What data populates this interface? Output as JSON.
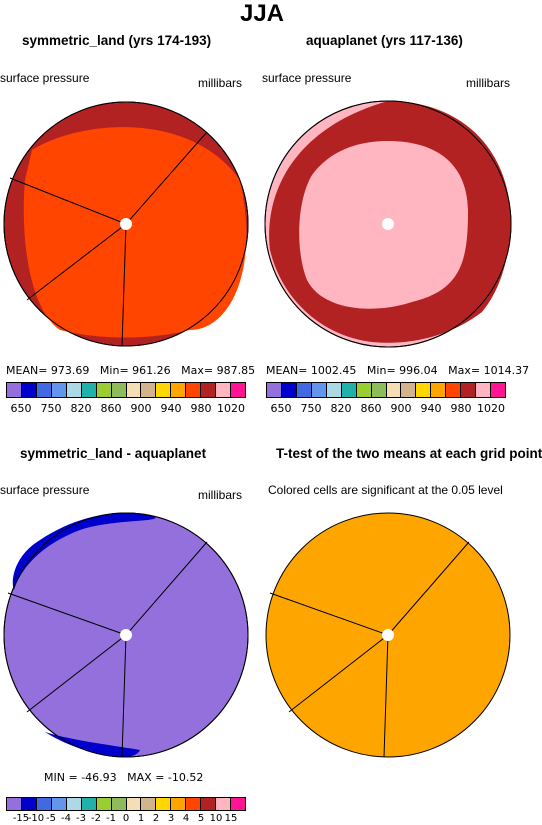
{
  "title": "JJA",
  "chart_data": [
    {
      "type": "heatmap",
      "title": "symmetric_land (yrs 174-193)",
      "left_label": "surface pressure",
      "right_label": "millibars",
      "stats": {
        "mean": "973.69",
        "min": "961.26",
        "max": "987.85"
      },
      "levels": [
        "650",
        "750",
        "820",
        "860",
        "900",
        "940",
        "980",
        "1020"
      ]
    },
    {
      "type": "heatmap",
      "title": "aquaplanet (yrs 117-136)",
      "left_label": "surface pressure",
      "right_label": "millibars",
      "stats": {
        "mean": "1002.45",
        "min": "996.04",
        "max": "1014.37"
      },
      "levels": [
        "650",
        "750",
        "820",
        "860",
        "900",
        "940",
        "980",
        "1020"
      ]
    },
    {
      "type": "heatmap",
      "title": "symmetric_land - aquaplanet",
      "left_label": "surface pressure",
      "right_label": "millibars",
      "stats": {
        "min": "-46.93",
        "max": "-10.52"
      },
      "levels": [
        "-15",
        "-10",
        "-5",
        "-4",
        "-3",
        "-2",
        "-1",
        "0",
        "1",
        "2",
        "3",
        "4",
        "5",
        "10",
        "15"
      ]
    },
    {
      "type": "heatmap",
      "title": "T-test of the two means at each grid point",
      "subtitle": "Colored cells are significant at the 0.05 level"
    }
  ],
  "colors": {
    "abs_bar": [
      "#9370db",
      "#0000cd",
      "#4169e1",
      "#6495ed",
      "#add8e6",
      "#20b2aa",
      "#9acd32",
      "#8fbc5a",
      "#f5deb3",
      "#d2b48c",
      "#ffd700",
      "#ffa500",
      "#ff4500",
      "#b22222",
      "#ffb6c1",
      "#ff1493"
    ],
    "diff_bar": [
      "#9370db",
      "#0000cd",
      "#4169e1",
      "#6495ed",
      "#add8e6",
      "#20b2aa",
      "#9acd32",
      "#8fbc5a",
      "#f5deb3",
      "#d2b48c",
      "#ffd700",
      "#ffa500",
      "#ff4500",
      "#b22222",
      "#ffb6c1",
      "#ff1493"
    ]
  },
  "stat_labels": {
    "mean": "MEAN=",
    "min": "Min=",
    "max": "Max=",
    "min_caps": "MIN =",
    "max_caps": "MAX ="
  }
}
